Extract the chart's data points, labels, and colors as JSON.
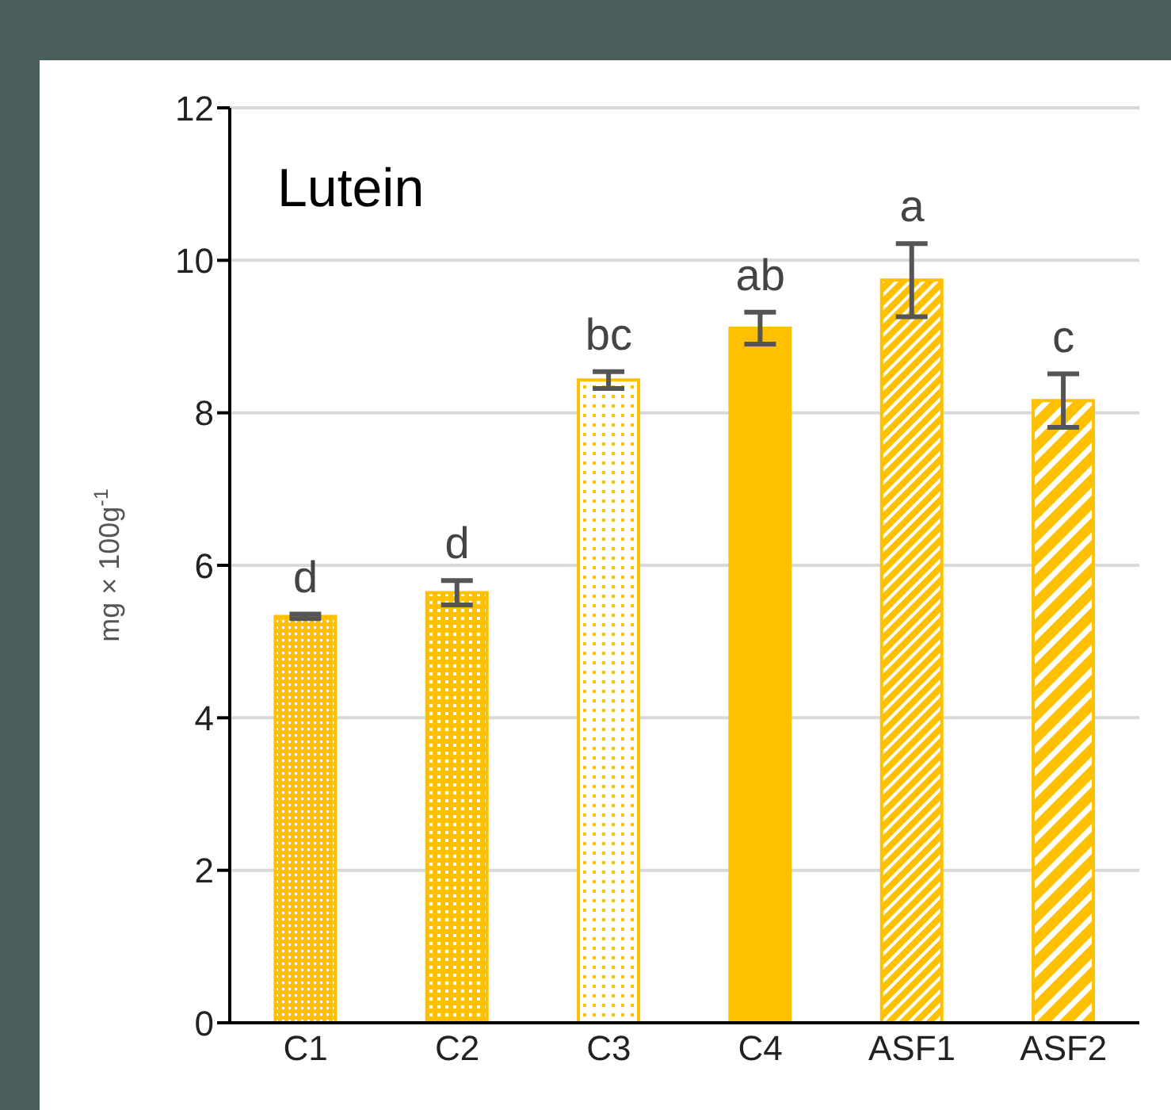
{
  "chart_data": {
    "type": "bar",
    "title": "Lutein",
    "ylabel": "mg × 100g$^{-1}$",
    "categories": [
      "C1",
      "C2",
      "C3",
      "C4",
      "ASF1",
      "ASF2"
    ],
    "values": [
      5.33,
      5.64,
      8.43,
      9.11,
      9.74,
      8.16
    ],
    "errors": [
      0.03,
      0.16,
      0.11,
      0.21,
      0.48,
      0.35
    ],
    "color": "#ffc000",
    "ylim": [
      0,
      12
    ],
    "yticks": [
      0,
      2,
      4,
      6,
      8,
      10,
      12
    ],
    "grid": "y",
    "annotations": [
      "d",
      "d",
      "bc",
      "ab",
      "a",
      "c"
    ]
  }
}
